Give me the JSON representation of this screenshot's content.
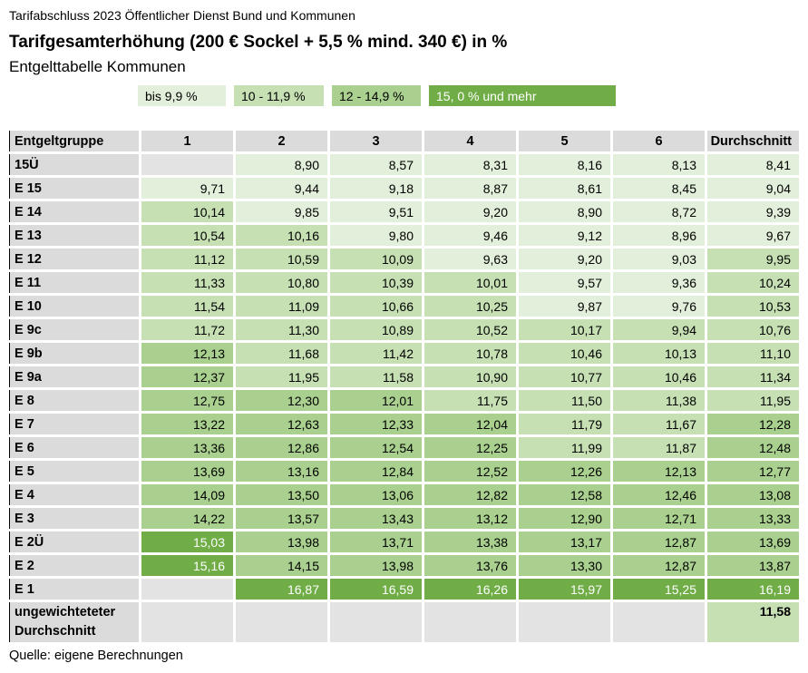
{
  "chart_data": {
    "type": "heatmap",
    "context": "Tarifabschluss 2023 Öffentlicher Dienst Bund und Kommunen",
    "title": "Tarifgesamterhöhung (200 € Sockel + 5,5 % mind. 340 €) in %",
    "subtitle": "Entgelttabelle Kommunen",
    "source": "Quelle: eigene Berechnungen",
    "legend": [
      {
        "label": "bis 9,9 %",
        "color": "#E2EFDA",
        "text_color": "#000000"
      },
      {
        "label": "10 - 11,9 %",
        "color": "#C6E0B4",
        "text_color": "#000000"
      },
      {
        "label": "12 - 14,9 %",
        "color": "#A9D08E",
        "text_color": "#000000"
      },
      {
        "label": "15, 0 % und mehr",
        "color": "#70AD47",
        "text_color": "#FFFFFF"
      }
    ],
    "color_buckets": {
      "bucket1_max": 9.9,
      "bucket3_min": 12,
      "bucket4_min": 15,
      "bucket1": "#E2EFDA",
      "bucket2": "#C6E0B4",
      "bucket3": "#A9D08E",
      "bucket4": "#70AD47",
      "bucket4_text": "#FFFFFF"
    },
    "columns": [
      "Entgeltgruppe",
      "1",
      "2",
      "3",
      "4",
      "5",
      "6",
      "Durchschnitt"
    ],
    "rows": [
      {
        "label": "15Ü",
        "values": [
          null,
          "8,90",
          "8,57",
          "8,31",
          "8,16",
          "8,13",
          "8,41"
        ]
      },
      {
        "label": "E 15",
        "values": [
          "9,71",
          "9,44",
          "9,18",
          "8,87",
          "8,61",
          "8,45",
          "9,04"
        ]
      },
      {
        "label": "E 14",
        "values": [
          "10,14",
          "9,85",
          "9,51",
          "9,20",
          "8,90",
          "8,72",
          "9,39"
        ]
      },
      {
        "label": "E 13",
        "values": [
          "10,54",
          "10,16",
          "9,80",
          "9,46",
          "9,12",
          "8,96",
          "9,67"
        ]
      },
      {
        "label": "E 12",
        "values": [
          "11,12",
          "10,59",
          "10,09",
          "9,63",
          "9,20",
          "9,03",
          "9,95"
        ]
      },
      {
        "label": "E 11",
        "values": [
          "11,33",
          "10,80",
          "10,39",
          "10,01",
          "9,57",
          "9,36",
          "10,24"
        ]
      },
      {
        "label": "E 10",
        "values": [
          "11,54",
          "11,09",
          "10,66",
          "10,25",
          "9,87",
          "9,76",
          "10,53"
        ]
      },
      {
        "label": "E 9c",
        "values": [
          "11,72",
          "11,30",
          "10,89",
          "10,52",
          "10,17",
          "9,94",
          "10,76"
        ]
      },
      {
        "label": "E 9b",
        "values": [
          "12,13",
          "11,68",
          "11,42",
          "10,78",
          "10,46",
          "10,13",
          "11,10"
        ]
      },
      {
        "label": "E 9a",
        "values": [
          "12,37",
          "11,95",
          "11,58",
          "10,90",
          "10,77",
          "10,46",
          "11,34"
        ]
      },
      {
        "label": "E 8",
        "values": [
          "12,75",
          "12,30",
          "12,01",
          "11,75",
          "11,50",
          "11,38",
          "11,95"
        ]
      },
      {
        "label": "E 7",
        "values": [
          "13,22",
          "12,63",
          "12,33",
          "12,04",
          "11,79",
          "11,67",
          "12,28"
        ]
      },
      {
        "label": "E 6",
        "values": [
          "13,36",
          "12,86",
          "12,54",
          "12,25",
          "11,99",
          "11,87",
          "12,48"
        ]
      },
      {
        "label": "E 5",
        "values": [
          "13,69",
          "13,16",
          "12,84",
          "12,52",
          "12,26",
          "12,13",
          "12,77"
        ]
      },
      {
        "label": "E 4",
        "values": [
          "14,09",
          "13,50",
          "13,06",
          "12,82",
          "12,58",
          "12,46",
          "13,08"
        ]
      },
      {
        "label": "E 3",
        "values": [
          "14,22",
          "13,57",
          "13,43",
          "13,12",
          "12,90",
          "12,71",
          "13,33"
        ]
      },
      {
        "label": "E 2Ü",
        "values": [
          "15,03",
          "13,98",
          "13,71",
          "13,38",
          "13,17",
          "12,87",
          "13,69"
        ]
      },
      {
        "label": "E 2",
        "values": [
          "15,16",
          "14,15",
          "13,98",
          "13,76",
          "13,30",
          "12,87",
          "13,87"
        ]
      },
      {
        "label": "E 1",
        "values": [
          null,
          "16,87",
          "16,59",
          "16,26",
          "15,97",
          "15,25",
          "16,19"
        ]
      }
    ],
    "summary_row": {
      "label": "ungewichteteter Durchschnitt",
      "values": [
        null,
        null,
        null,
        null,
        null,
        null,
        "11,58"
      ]
    }
  }
}
